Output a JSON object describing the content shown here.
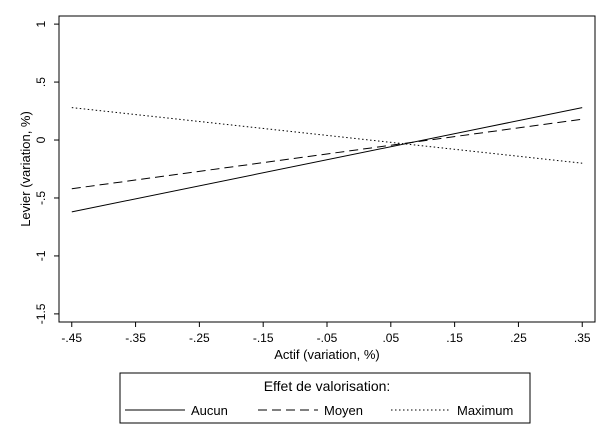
{
  "chart_data": {
    "type": "line",
    "xlabel": "Actif (variation, %)",
    "ylabel": "Levier (variation, %)",
    "xlim": [
      -0.47,
      0.37
    ],
    "ylim": [
      -1.57,
      1.07
    ],
    "x_ticks": [
      -0.45,
      -0.35,
      -0.25,
      -0.15,
      -0.05,
      0.05,
      0.15,
      0.25,
      0.35
    ],
    "x_tick_labels": [
      "-.45",
      "-.35",
      "-.25",
      "-.15",
      "-.05",
      ".05",
      ".15",
      ".25",
      ".35"
    ],
    "y_ticks": [
      1,
      0.5,
      0,
      -0.5,
      -1,
      -1.5
    ],
    "y_tick_labels": [
      "1",
      ".5",
      "0",
      "-.5",
      "-1",
      "-1.5"
    ],
    "grid": false,
    "legend_title": "Effet de valorisation:",
    "legend_position": "bottom",
    "series": [
      {
        "name": "Aucun",
        "style": "solid",
        "x": [
          -0.45,
          0.35
        ],
        "y": [
          -0.62,
          0.28
        ]
      },
      {
        "name": "Moyen",
        "style": "dashed",
        "x": [
          -0.45,
          0.35
        ],
        "y": [
          -0.42,
          0.18
        ]
      },
      {
        "name": "Maximum",
        "style": "dotted",
        "x": [
          -0.45,
          0.35
        ],
        "y": [
          0.28,
          -0.2
        ]
      }
    ]
  }
}
